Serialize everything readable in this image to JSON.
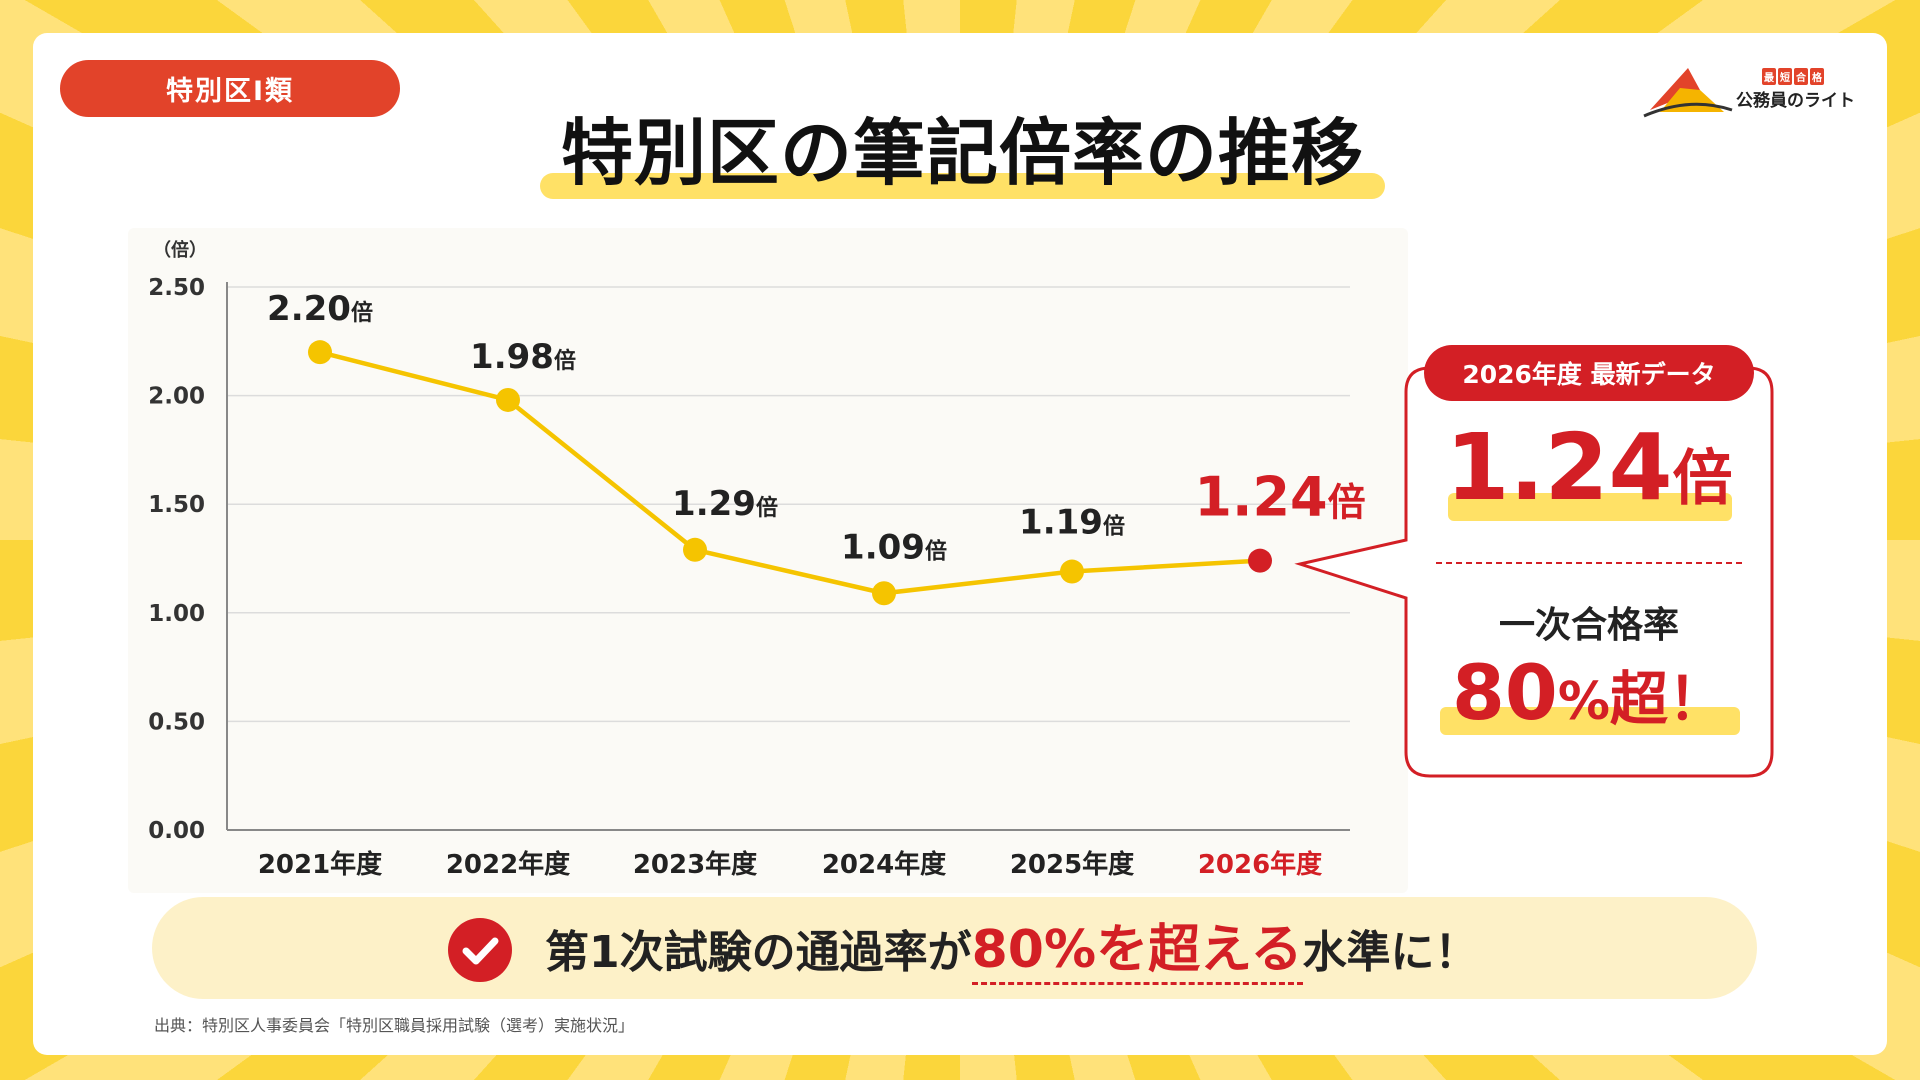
{
  "tag": "特別区Ⅰ類",
  "logo": {
    "badge": [
      "最",
      "短",
      "合",
      "格"
    ],
    "text": "公務員のライト"
  },
  "title": "特別区の筆記倍率の推移",
  "chart_data": {
    "type": "line",
    "title": "特別区の筆記倍率の推移",
    "ylabel": "（倍）",
    "xlabel": "",
    "categories": [
      "2021年度",
      "2022年度",
      "2023年度",
      "2024年度",
      "2025年度",
      "2026年度"
    ],
    "values": [
      2.2,
      1.98,
      1.29,
      1.09,
      1.19,
      1.24
    ],
    "value_labels": [
      "2.20",
      "1.98",
      "1.29",
      "1.09",
      "1.19",
      "1.24"
    ],
    "value_unit": "倍",
    "ylim": [
      0,
      2.5
    ],
    "yticks": [
      "0.00",
      "0.50",
      "1.00",
      "1.50",
      "2.00",
      "2.50"
    ],
    "grid": true,
    "line_color": "#f5c400",
    "highlight_color": "#d31f25",
    "highlight_index": 5
  },
  "callout": {
    "label": "2026年度 最新データ",
    "value": "1.24",
    "unit": "倍",
    "sub": "一次合格率",
    "pct_num": "80",
    "pct_sign": "%",
    "pct_rest": "超！"
  },
  "banner": {
    "pre": "第1次試験の通過率が",
    "highlight": "80%を超える",
    "post": "水準に！"
  },
  "source": "出典：特別区人事委員会「特別区職員採用試験（選考）実施状況」"
}
